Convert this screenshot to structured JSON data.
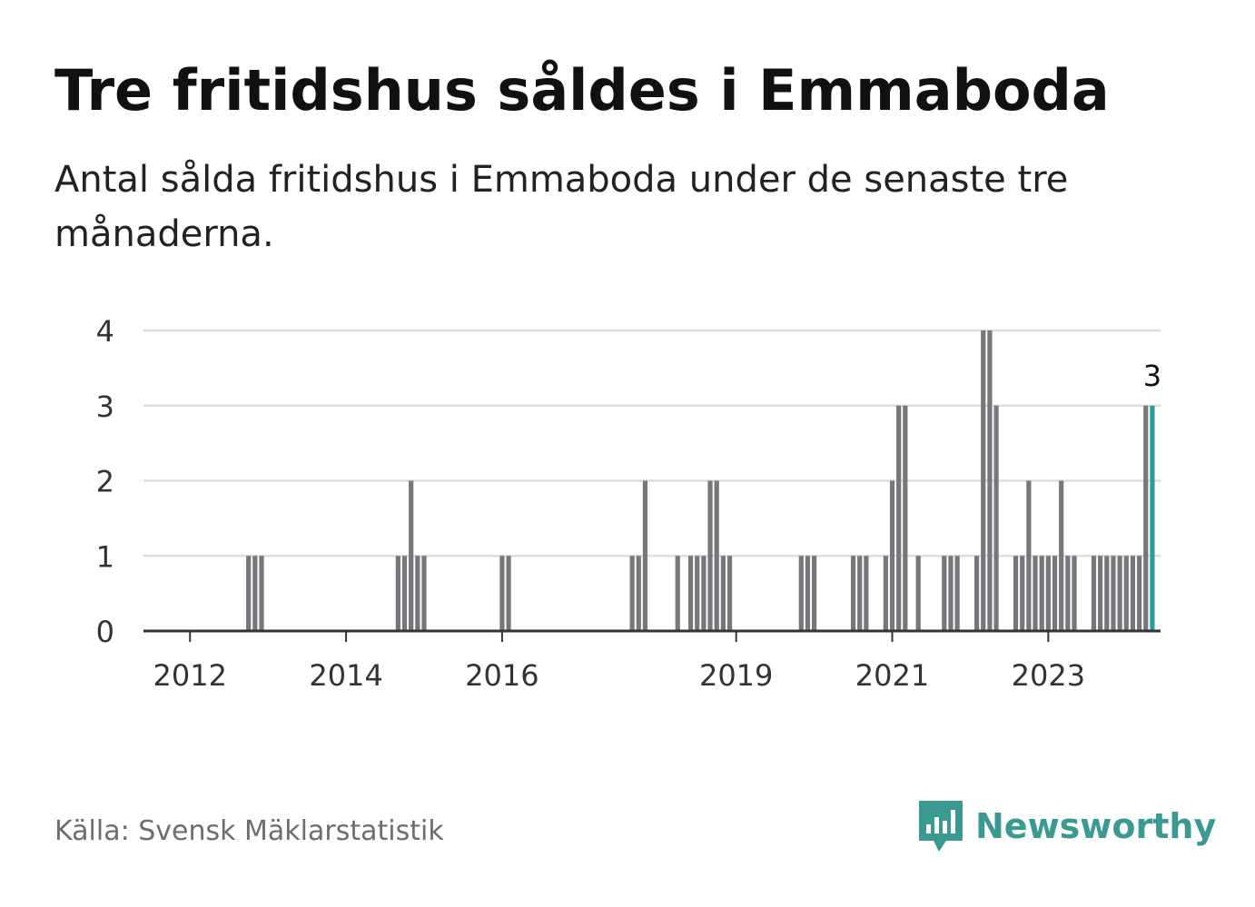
{
  "title": "Tre fritidshus såldes i Emmaboda",
  "subtitle": "Antal sålda fritidshus i Emmaboda under de senaste tre månaderna.",
  "source": "Källa: Svensk Mäklarstatistik",
  "brand": {
    "name": "Newsworthy",
    "icon": "newsworthy-logo-icon"
  },
  "colors": {
    "bar": "#77767b",
    "highlight": "#2a9d96",
    "grid": "#dddddd",
    "axis": "#333333",
    "brand": "#3a9a92"
  },
  "chart_data": {
    "type": "bar",
    "title": "Tre fritidshus såldes i Emmaboda",
    "xlabel": "",
    "ylabel": "",
    "ylim": [
      0,
      4
    ],
    "yticks": [
      "0",
      "1",
      "2",
      "3",
      "4"
    ],
    "grid": true,
    "x_start": "2011-09",
    "x_ticks": [
      {
        "label": "2012",
        "index": 4
      },
      {
        "label": "2014",
        "index": 28
      },
      {
        "label": "2016",
        "index": 52
      },
      {
        "label": "2019",
        "index": 88
      },
      {
        "label": "2021",
        "index": 112
      },
      {
        "label": "2023",
        "index": 136
      }
    ],
    "values": [
      0,
      0,
      0,
      0,
      0,
      0,
      0,
      0,
      0,
      0,
      0,
      0,
      0,
      1,
      1,
      1,
      0,
      0,
      0,
      0,
      0,
      0,
      0,
      0,
      0,
      0,
      0,
      0,
      0,
      0,
      0,
      0,
      0,
      0,
      0,
      0,
      1,
      1,
      2,
      1,
      1,
      0,
      0,
      0,
      0,
      0,
      0,
      0,
      0,
      0,
      0,
      0,
      1,
      1,
      0,
      0,
      0,
      0,
      0,
      0,
      0,
      0,
      0,
      0,
      0,
      0,
      0,
      0,
      0,
      0,
      0,
      0,
      1,
      1,
      2,
      0,
      0,
      0,
      0,
      1,
      0,
      1,
      1,
      1,
      2,
      2,
      1,
      1,
      0,
      0,
      0,
      0,
      0,
      0,
      0,
      0,
      0,
      0,
      1,
      1,
      1,
      0,
      0,
      0,
      0,
      0,
      1,
      1,
      1,
      0,
      0,
      1,
      2,
      3,
      3,
      0,
      1,
      0,
      0,
      0,
      1,
      1,
      1,
      0,
      0,
      1,
      4,
      4,
      3,
      0,
      0,
      1,
      1,
      2,
      1,
      1,
      1,
      1,
      2,
      1,
      1,
      0,
      0,
      1,
      1,
      1,
      1,
      1,
      1,
      1,
      1,
      3,
      3
    ],
    "highlight_index": 152,
    "highlight_label": "3"
  }
}
